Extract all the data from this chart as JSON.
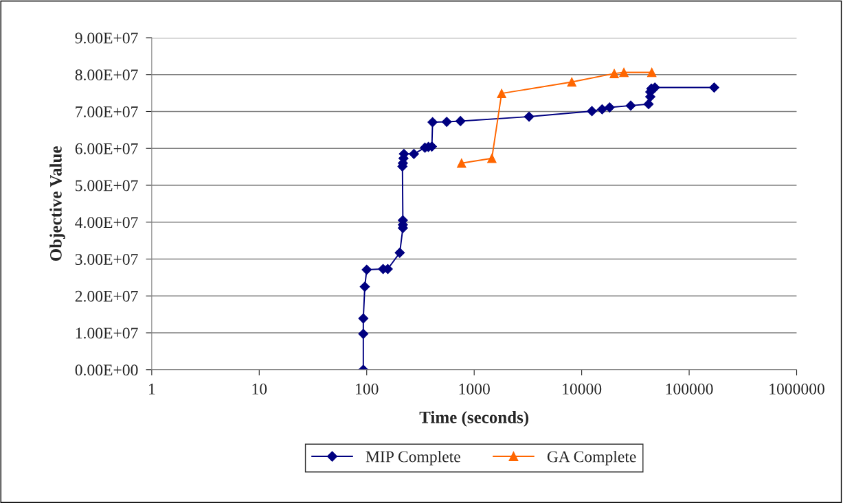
{
  "chart_data": {
    "type": "line",
    "xlabel": "Time (seconds)",
    "ylabel": "Objective Value",
    "log": "x",
    "xlim": [
      1,
      1000000
    ],
    "xticks": [
      1,
      10,
      100,
      1000,
      10000,
      100000,
      1000000
    ],
    "ylim": [
      0,
      90000000
    ],
    "yticks": [
      {
        "value": 0,
        "label": "0.00E+00"
      },
      {
        "value": 10000000,
        "label": "1.00E+07"
      },
      {
        "value": 20000000,
        "label": "2.00E+07"
      },
      {
        "value": 30000000,
        "label": "3.00E+07"
      },
      {
        "value": 40000000,
        "label": "4.00E+07"
      },
      {
        "value": 50000000,
        "label": "5.00E+07"
      },
      {
        "value": 60000000,
        "label": "6.00E+07"
      },
      {
        "value": 70000000,
        "label": "7.00E+07"
      },
      {
        "value": 80000000,
        "label": "8.00E+07"
      },
      {
        "value": 90000000,
        "label": "9.00E+07"
      }
    ],
    "grid": "y",
    "legend": "bottom",
    "line_style": "solid",
    "series": [
      {
        "name": "MIP Complete",
        "color": "#000080",
        "marker": "diamond",
        "x": [
          93,
          93,
          93,
          96,
          100,
          142,
          157,
          203,
          217,
          217,
          217,
          215,
          217,
          220,
          222,
          275,
          348,
          375,
          404,
          410,
          555,
          745,
          3240,
          12450,
          15500,
          18200,
          28600,
          41900,
          43500,
          43500,
          44500,
          48000,
          171000
        ],
        "values": [
          0,
          9700000,
          13900000,
          22500000,
          27100000,
          27300000,
          27300000,
          31700000,
          38400000,
          39300000,
          40500000,
          55100000,
          56000000,
          57300000,
          58500000,
          58500000,
          60200000,
          60400000,
          60500000,
          67100000,
          67200000,
          67400000,
          68600000,
          70100000,
          70600000,
          71100000,
          71600000,
          72000000,
          74000000,
          75300000,
          76200000,
          76500000,
          76500000
        ]
      },
      {
        "name": "GA Complete",
        "color": "#ff6600",
        "marker": "triangle",
        "x": [
          763,
          1460,
          1800,
          8090,
          20100,
          24700,
          44900
        ],
        "values": [
          56000000,
          57300000,
          74900000,
          78000000,
          80300000,
          80600000,
          80600000
        ]
      }
    ]
  }
}
